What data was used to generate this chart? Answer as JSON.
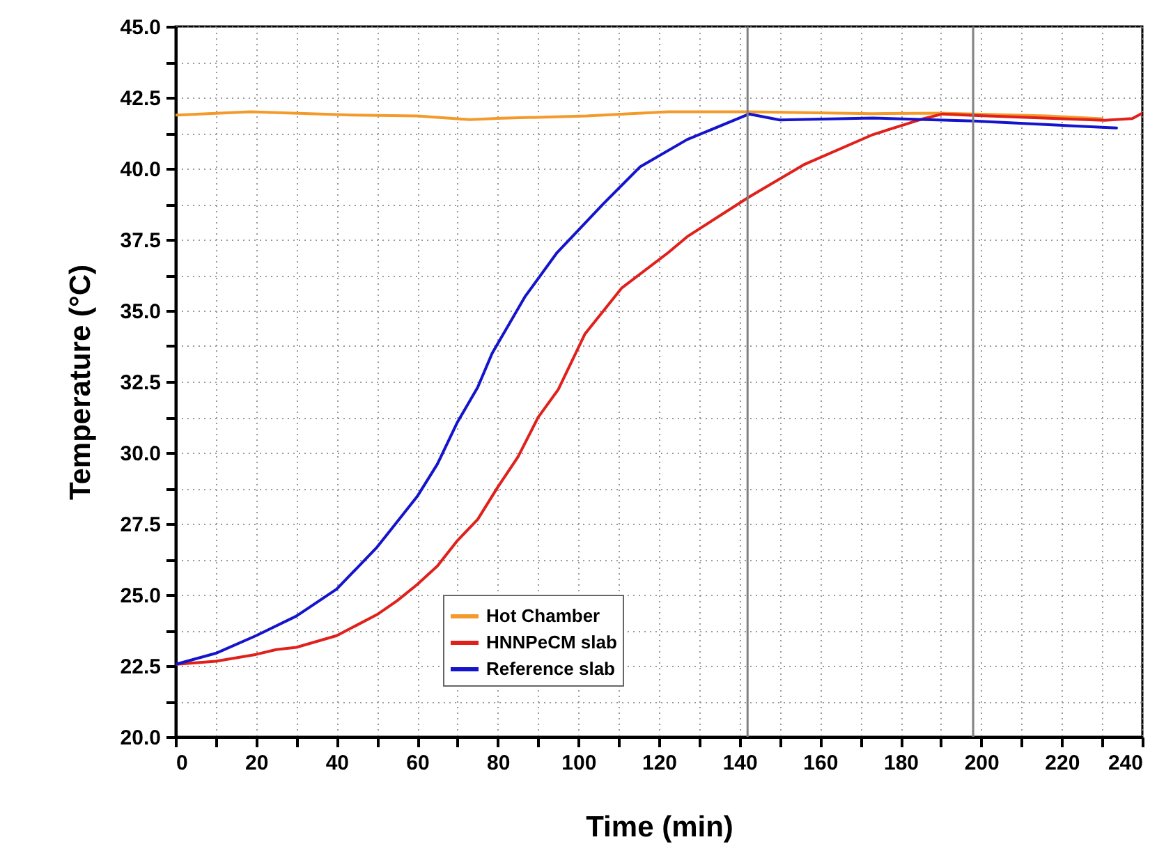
{
  "chart_data": {
    "type": "line",
    "xlabel": "Time (min)",
    "ylabel": "Temperature (°C)",
    "xlim": [
      0,
      240
    ],
    "ylim": [
      20,
      45
    ],
    "xticks": [
      0,
      {
        "value": 10,
        "label": null
      },
      20,
      {
        "value": 30,
        "label": null
      },
      40,
      {
        "value": 50,
        "label": null
      },
      60,
      {
        "value": 70,
        "label": null
      },
      80,
      {
        "value": 90,
        "label": null
      },
      100,
      {
        "value": 110,
        "label": null
      },
      120,
      {
        "value": 130,
        "label": null
      },
      140,
      {
        "value": 150,
        "label": null
      },
      160,
      {
        "value": 170,
        "label": null
      },
      180,
      {
        "value": 190,
        "label": null
      },
      200,
      {
        "value": 210,
        "label": null
      },
      220,
      {
        "value": 230,
        "label": null
      },
      240
    ],
    "yticks": [
      {
        "value": 20,
        "label": "20.0"
      },
      {
        "value": 21.25,
        "label": null
      },
      {
        "value": 22.5,
        "label": "22.5"
      },
      {
        "value": 23.75,
        "label": null
      },
      {
        "value": 25,
        "label": "25.0"
      },
      {
        "value": 26.25,
        "label": null
      },
      {
        "value": 27.5,
        "label": "27.5"
      },
      {
        "value": 28.75,
        "label": null
      },
      {
        "value": 30,
        "label": "30.0"
      },
      {
        "value": 31.25,
        "label": null
      },
      {
        "value": 32.5,
        "label": "32.5"
      },
      {
        "value": 33.75,
        "label": null
      },
      {
        "value": 35,
        "label": "35.0"
      },
      {
        "value": 36.25,
        "label": null
      },
      {
        "value": 37.5,
        "label": "37.5"
      },
      {
        "value": 38.75,
        "label": null
      },
      {
        "value": 40,
        "label": "40.0"
      },
      {
        "value": 41.25,
        "label": null
      },
      {
        "value": 42.5,
        "label": "42.5"
      },
      {
        "value": 43.75,
        "label": null
      },
      {
        "value": 45,
        "label": "45.0"
      }
    ],
    "grid": true,
    "legend": "bottom left",
    "line_style": "solid",
    "ref_lines": [
      {
        "axis": "x",
        "value": 142,
        "color": "#808080"
      },
      {
        "axis": "x",
        "value": 198,
        "color": "#808080"
      }
    ],
    "series": [
      {
        "name": "Hot Chamber",
        "color": "#f39a2b",
        "x": [
          0,
          18.6,
          44,
          60,
          73,
          81,
          102,
          115.5,
          122.3,
          142.4,
          173,
          190,
          216.5,
          230
        ],
        "values": [
          41.88,
          42.0,
          41.88,
          41.85,
          41.72,
          41.77,
          41.85,
          41.95,
          42.0,
          42.0,
          41.93,
          41.95,
          41.85,
          41.75
        ]
      },
      {
        "name": "HNNPeCM slab",
        "color": "#e0201b",
        "x": [
          0,
          10,
          20,
          25,
          30,
          40,
          50,
          55,
          60,
          65,
          70,
          75,
          80,
          85,
          90,
          95,
          101.6,
          110.8,
          122.3,
          127,
          142.4,
          155.9,
          173.2,
          185.8,
          190.4,
          198.2,
          219,
          230.6,
          237.5,
          240
        ],
        "values": [
          22.55,
          22.66,
          22.9,
          23.07,
          23.15,
          23.56,
          24.3,
          24.79,
          25.36,
          26.01,
          26.91,
          27.65,
          28.79,
          29.85,
          31.24,
          32.22,
          34.17,
          35.8,
          37.04,
          37.6,
          39.0,
          40.13,
          41.2,
          41.76,
          41.92,
          41.87,
          41.76,
          41.7,
          41.76,
          41.95
        ]
      },
      {
        "name": "Reference slab",
        "color": "#1414cc",
        "x": [
          0,
          10,
          20,
          30,
          40,
          50,
          60,
          65,
          70,
          75,
          78.6,
          86.7,
          94.7,
          106.2,
          115.4,
          127,
          142.4,
          150,
          173,
          198.2,
          233.6
        ],
        "values": [
          22.55,
          22.94,
          23.56,
          24.25,
          25.2,
          26.67,
          28.46,
          29.6,
          31.08,
          32.3,
          33.5,
          35.48,
          37.04,
          38.76,
          40.07,
          41.02,
          41.92,
          41.71,
          41.78,
          41.67,
          41.43
        ]
      }
    ]
  }
}
